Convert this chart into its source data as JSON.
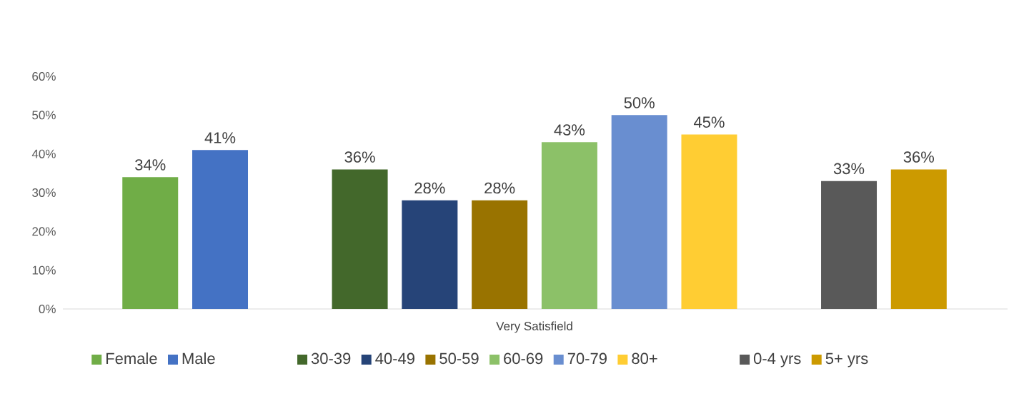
{
  "chart_data": {
    "type": "bar",
    "categories": [
      "Very Satisfield"
    ],
    "legend": "bottom",
    "ylim": [
      0,
      60
    ],
    "yticks": [
      {
        "value": 0,
        "label": "0%"
      },
      {
        "value": 10,
        "label": "10%"
      },
      {
        "value": 20,
        "label": "20%"
      },
      {
        "value": 30,
        "label": "30%"
      },
      {
        "value": 40,
        "label": "40%"
      },
      {
        "value": 50,
        "label": "50%"
      },
      {
        "value": 60,
        "label": "60%"
      }
    ],
    "series": [
      {
        "name": "Female",
        "color": "#70ad47",
        "values": [
          34
        ],
        "value_labels": [
          "34%"
        ]
      },
      {
        "name": "Male",
        "color": "#4472c4",
        "values": [
          41
        ],
        "value_labels": [
          "41%"
        ]
      },
      {
        "values": [
          null
        ]
      },
      {
        "name": "30-39",
        "color": "#43682b",
        "values": [
          36
        ],
        "value_labels": [
          "36%"
        ]
      },
      {
        "name": "40-49",
        "color": "#264478",
        "values": [
          28
        ],
        "value_labels": [
          "28%"
        ]
      },
      {
        "name": "50-59",
        "color": "#997300",
        "values": [
          28
        ],
        "value_labels": [
          "28%"
        ]
      },
      {
        "name": "60-69",
        "color": "#8cc168",
        "values": [
          43
        ],
        "value_labels": [
          "43%"
        ]
      },
      {
        "name": "70-79",
        "color": "#698ed0",
        "values": [
          50
        ],
        "value_labels": [
          "50%"
        ]
      },
      {
        "name": "80+",
        "color": "#ffcd33",
        "values": [
          45
        ],
        "value_labels": [
          "45%"
        ]
      },
      {
        "values": [
          null
        ]
      },
      {
        "name": "0-4 yrs",
        "color": "#595959",
        "values": [
          33
        ],
        "value_labels": [
          "33%"
        ]
      },
      {
        "name": "5+ yrs",
        "color": "#cc9a00",
        "values": [
          36
        ],
        "value_labels": [
          "36%"
        ]
      }
    ]
  }
}
